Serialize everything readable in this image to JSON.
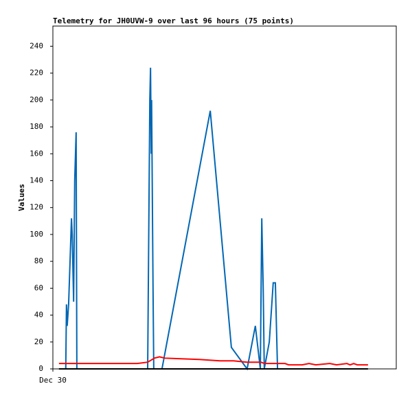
{
  "chart_data": {
    "type": "line",
    "title": "Telemetry for JH0UVW-9 over last 96 hours (75 points)",
    "y_label": "Values",
    "xlim": [
      0,
      96
    ],
    "xticks": [
      {
        "value": 0,
        "label": "Dec 30"
      }
    ],
    "ylim": [
      0,
      255
    ],
    "yticks": [
      0,
      20,
      40,
      60,
      80,
      100,
      120,
      140,
      160,
      180,
      200,
      220,
      240
    ],
    "series": [
      {
        "color": "#0066b3",
        "x": [
          1.7,
          3.6,
          3.8,
          4.0,
          4.4,
          4.8,
          5.2,
          5.4,
          5.8,
          6.1,
          6.5,
          6.7,
          26.5,
          27.1,
          27.3,
          27.5,
          27.6,
          28.0,
          28.2,
          30.5,
          44.0,
          49.9,
          54.3,
          56.6,
          58.0,
          58.4,
          58.8,
          59.1,
          60.5,
          61.6,
          62.2,
          62.8
        ],
        "values": [
          0,
          0,
          48,
          32,
          48,
          80,
          112,
          100,
          50,
          140,
          176,
          0,
          0,
          200,
          224,
          160,
          200,
          60,
          0,
          0,
          192,
          16,
          0,
          32,
          0,
          112,
          60,
          0,
          20,
          64,
          64,
          0
        ]
      },
      {
        "color": "#ff0000",
        "x": [
          1.7,
          23.6,
          26.5,
          28.4,
          29.8,
          31.3,
          40.9,
          46.7,
          50.5,
          54.3,
          58.2,
          59.1,
          64.9,
          65.9,
          69.7,
          71.6,
          73.5,
          77.4,
          79.3,
          82.2,
          83.1,
          84.1,
          85.1,
          88.1
        ],
        "values": [
          4,
          4,
          5,
          8,
          9,
          8,
          7,
          6,
          6,
          5,
          5,
          4,
          4,
          3,
          3,
          4,
          3,
          4,
          3,
          4,
          3,
          4,
          3,
          3
        ]
      },
      {
        "color": "#000000",
        "x": [
          1.7,
          88.1
        ],
        "values": [
          0,
          0
        ]
      }
    ]
  }
}
